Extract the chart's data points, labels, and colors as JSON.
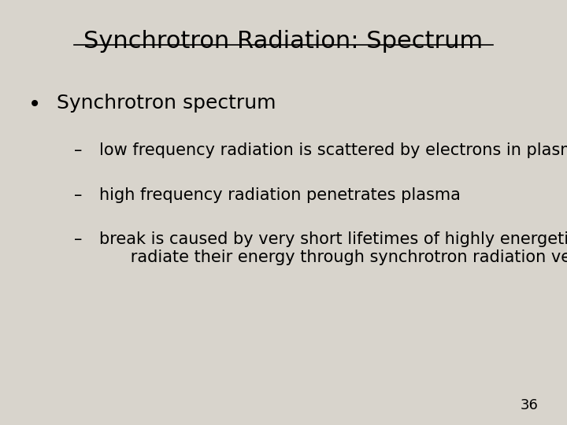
{
  "title": "Synchrotron Radiation: Spectrum",
  "background_color": "#d8d4cc",
  "text_color": "#000000",
  "title_fontsize": 22,
  "bullet_fontsize": 18,
  "sub_fontsize": 15,
  "bullet_text": "Synchrotron spectrum",
  "sub_items": [
    "low frequency radiation is scattered by electrons in plasma",
    "high frequency radiation penetrates plasma",
    "break is caused by very short lifetimes of highly energetic electrons (they\n      radiate their energy through synchrotron radiation very quickly)"
  ],
  "page_number": "36"
}
